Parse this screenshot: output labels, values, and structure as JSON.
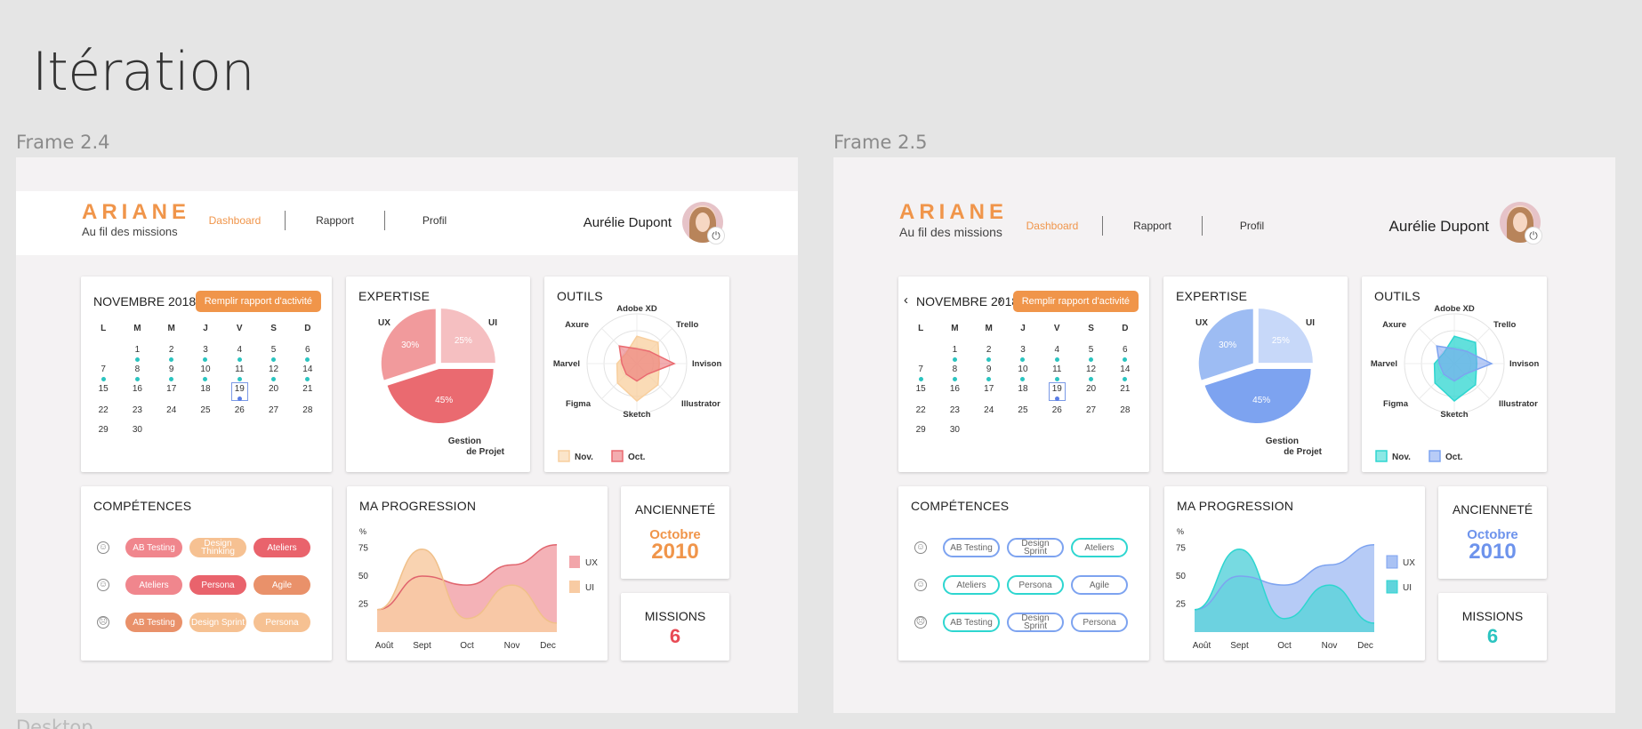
{
  "page_title": "Itération",
  "desktop_label": "Desktop",
  "frames": [
    {
      "label": "Frame 2.4",
      "theme": {
        "c1": "#f19a9c",
        "c2": "#f5bfc1",
        "c3": "#ea6a70",
        "radar_a": "#f8cf9e",
        "radar_b": "#ea6a70",
        "area_ux": "#f2a5aa",
        "area_ui": "#f8cba3",
        "line_ui": "#f0c08a",
        "line_ux": "#e0646d",
        "accent": "#f0954a",
        "missions": "#e84a55"
      },
      "chip_style": "filled"
    },
    {
      "label": "Frame 2.5",
      "theme": {
        "c1": "#9dbcf3",
        "c2": "#c7d8f9",
        "c3": "#7da3f0",
        "radar_a": "#2ed6d0",
        "radar_b": "#7da3f0",
        "area_ux": "#a9c2f4",
        "area_ui": "#5fd4dc",
        "line_ui": "#2ed6d0",
        "line_ux": "#7da3f0",
        "accent": "#6d93ec",
        "missions": "#2bc4c0"
      },
      "chip_style": "outline"
    }
  ],
  "header": {
    "logo": "ARIANE",
    "tagline": "Au fil des missions",
    "nav": [
      "Dashboard",
      "Rapport",
      "Profil"
    ],
    "active_nav": "Dashboard",
    "user_name": "Aurélie Dupont"
  },
  "calendar": {
    "month": "NOVEMBRE 2018",
    "button": "Remplir rapport d'activité",
    "days": [
      "L",
      "M",
      "M",
      "J",
      "V",
      "S",
      "D"
    ],
    "weeks": [
      [
        null,
        "1",
        "2",
        "3",
        "4",
        "5",
        "6"
      ],
      [
        "7",
        "8",
        "9",
        "10",
        "11",
        "12",
        "14"
      ],
      [
        "15",
        "16",
        "17",
        "18",
        "19",
        "20",
        "21"
      ],
      [
        "22",
        "23",
        "24",
        "25",
        "26",
        "27",
        "28"
      ],
      [
        "29",
        "30",
        null,
        null,
        null,
        null,
        null
      ]
    ],
    "dotted": [
      "1",
      "2",
      "3",
      "4",
      "5",
      "6",
      "7",
      "8",
      "9",
      "10",
      "11",
      "12",
      "14",
      "19"
    ],
    "today": "19"
  },
  "expertise": {
    "title": "EXPERTISE",
    "chart_data": {
      "type": "pie",
      "categories": [
        "UX",
        "UI",
        "Gestion de Projet"
      ],
      "values": [
        30,
        25,
        45
      ],
      "value_labels": [
        "30%",
        "25%",
        "45%"
      ],
      "category_labels": [
        "UX",
        "UI",
        "Gestion",
        "de Projet"
      ]
    }
  },
  "outils": {
    "title": "OUTILS",
    "chart_data": {
      "type": "radar",
      "categories": [
        "Adobe XD",
        "Trello",
        "Invison",
        "Illustrator",
        "Sketch",
        "Figma",
        "Marvel",
        "Axure"
      ],
      "series": [
        {
          "name": "Nov.",
          "values": [
            0.55,
            0.6,
            0.45,
            0.6,
            0.75,
            0.55,
            0.4,
            0.3
          ]
        },
        {
          "name": "Oct.",
          "values": [
            0.3,
            0.35,
            0.75,
            0.3,
            0.35,
            0.3,
            0.3,
            0.5
          ]
        }
      ]
    }
  },
  "competences": {
    "title": "COMPÉTENCES",
    "rows": [
      {
        "icon": "☺",
        "chips": [
          {
            "label": "AB Testing",
            "c": 1
          },
          {
            "label": "Design Thinking",
            "c": 2
          },
          {
            "label": "Ateliers",
            "c": 3
          }
        ]
      },
      {
        "icon": "☺",
        "chips": [
          {
            "label": "Ateliers",
            "c": 1
          },
          {
            "label": "Persona",
            "c": 3
          },
          {
            "label": "Agile",
            "c": 4
          }
        ]
      },
      {
        "icon": "☹",
        "chips": [
          {
            "label": "AB Testing",
            "c": 4
          },
          {
            "label": "Design Sprint",
            "c": 2
          },
          {
            "label": "Persona",
            "c": 2
          }
        ]
      }
    ],
    "rows_alt": [
      {
        "icon": "☺",
        "chips": [
          {
            "label": "AB Testing",
            "c": 1
          },
          {
            "label": "Design Sprint",
            "c": 1
          },
          {
            "label": "Ateliers",
            "c": 2
          }
        ]
      },
      {
        "icon": "☺",
        "chips": [
          {
            "label": "Ateliers",
            "c": 2
          },
          {
            "label": "Persona",
            "c": 2
          },
          {
            "label": "Agile",
            "c": 1
          }
        ]
      },
      {
        "icon": "☹",
        "chips": [
          {
            "label": "AB Testing",
            "c": 2
          },
          {
            "label": "Design Sprint",
            "c": 1
          },
          {
            "label": "Persona",
            "c": 1
          }
        ]
      }
    ]
  },
  "progression": {
    "title": "MA PROGRESSION",
    "chart_data": {
      "type": "area",
      "ylabel": "%",
      "y_ticks": [
        "75",
        "50",
        "25"
      ],
      "categories": [
        "Août",
        "Sept",
        "Oct",
        "Nov",
        "Dec"
      ],
      "series": [
        {
          "name": "UX",
          "values": [
            20,
            50,
            42,
            60,
            78
          ]
        },
        {
          "name": "UI",
          "values": [
            20,
            74,
            12,
            42,
            8
          ]
        }
      ]
    }
  },
  "anciennete": {
    "title": "ANCIENNETÉ",
    "month": "Octobre",
    "year": "2010"
  },
  "missions": {
    "title": "MISSIONS",
    "value": "6"
  }
}
